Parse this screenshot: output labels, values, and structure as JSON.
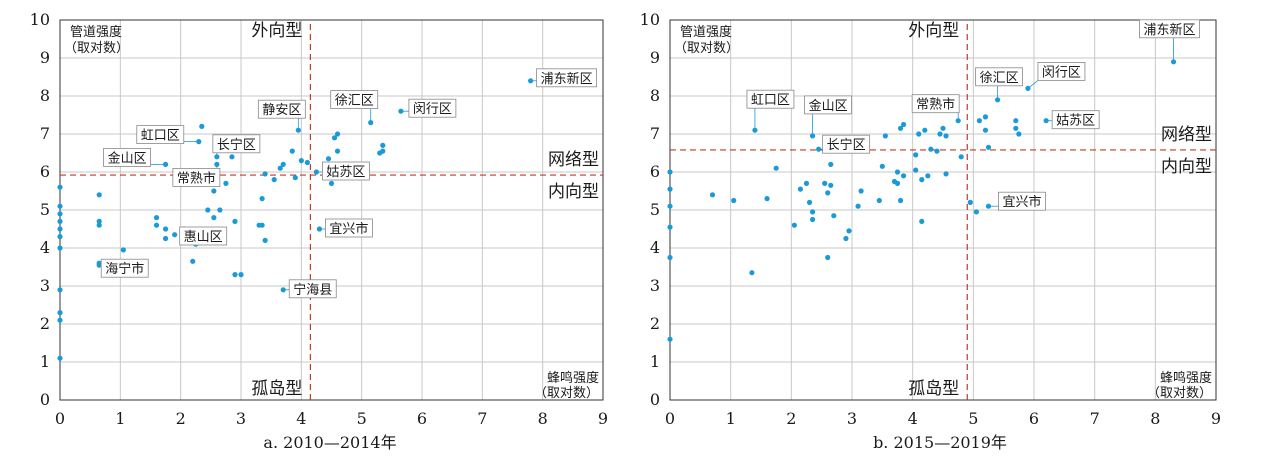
{
  "chart_data": [
    {
      "type": "scatter",
      "caption": "a. 2010—2014年",
      "xlabel": [
        "蜂鸣强度",
        "（取对数）"
      ],
      "ylabel": [
        "管道强度",
        "（取对数）"
      ],
      "xlim": [
        0,
        9
      ],
      "ylim": [
        0,
        10
      ],
      "xticks": [
        0,
        1,
        2,
        3,
        4,
        5,
        6,
        7,
        8,
        9
      ],
      "yticks": [
        0,
        1,
        2,
        3,
        4,
        5,
        6,
        7,
        8,
        9,
        10
      ],
      "grid": true,
      "threshold_x": 4.15,
      "threshold_y": 5.92,
      "quadrants": {
        "top": "外向型",
        "right_upper": "网络型",
        "right_lower": "内向型",
        "bottom": "孤岛型"
      },
      "points": [
        [
          0,
          1.1
        ],
        [
          0,
          2.1
        ],
        [
          0,
          2.3
        ],
        [
          0,
          2.9
        ],
        [
          0,
          4.0
        ],
        [
          0,
          4.3
        ],
        [
          0,
          4.5
        ],
        [
          0,
          4.7
        ],
        [
          0,
          4.9
        ],
        [
          0,
          5.1
        ],
        [
          0,
          5.6
        ],
        [
          0.65,
          3.6
        ],
        [
          0.65,
          3.55
        ],
        [
          0.65,
          4.6
        ],
        [
          0.65,
          4.7
        ],
        [
          0.65,
          5.4
        ],
        [
          1.05,
          3.95
        ],
        [
          1.6,
          4.6
        ],
        [
          1.6,
          4.8
        ],
        [
          1.75,
          4.5
        ],
        [
          1.75,
          4.25
        ],
        [
          1.75,
          6.2
        ],
        [
          1.9,
          4.35
        ],
        [
          2.05,
          4.2
        ],
        [
          2.05,
          4.35
        ],
        [
          2.05,
          4.5
        ],
        [
          2.2,
          3.65
        ],
        [
          2.25,
          4.1
        ],
        [
          2.35,
          4.3
        ],
        [
          2.3,
          6.8
        ],
        [
          2.35,
          7.2
        ],
        [
          2.45,
          5.0
        ],
        [
          2.55,
          4.8
        ],
        [
          2.55,
          5.5
        ],
        [
          2.65,
          5.0
        ],
        [
          2.6,
          6.2
        ],
        [
          2.6,
          6.4
        ],
        [
          2.75,
          5.7
        ],
        [
          2.85,
          6.4
        ],
        [
          2.9,
          4.7
        ],
        [
          2.9,
          3.3
        ],
        [
          3.0,
          3.3
        ],
        [
          3.3,
          4.6
        ],
        [
          3.35,
          4.6
        ],
        [
          3.35,
          5.3
        ],
        [
          3.4,
          4.2
        ],
        [
          3.4,
          5.95
        ],
        [
          3.55,
          5.8
        ],
        [
          3.65,
          6.1
        ],
        [
          3.7,
          6.2
        ],
        [
          3.7,
          2.9
        ],
        [
          3.85,
          6.55
        ],
        [
          3.9,
          5.85
        ],
        [
          3.95,
          7.1
        ],
        [
          4.0,
          6.3
        ],
        [
          4.1,
          6.25
        ],
        [
          4.25,
          6.0
        ],
        [
          4.3,
          4.5
        ],
        [
          4.45,
          6.35
        ],
        [
          4.5,
          5.7
        ],
        [
          4.55,
          6.9
        ],
        [
          4.6,
          7.0
        ],
        [
          4.6,
          6.55
        ],
        [
          5.15,
          7.3
        ],
        [
          5.3,
          6.5
        ],
        [
          5.35,
          6.55
        ],
        [
          5.35,
          6.7
        ],
        [
          5.65,
          7.6
        ],
        [
          7.8,
          8.4
        ]
      ],
      "labels": [
        {
          "text": "浦东新区",
          "x": 7.8,
          "y": 8.4
        },
        {
          "text": "徐汇区",
          "x": 5.15,
          "y": 7.3
        },
        {
          "text": "闵行区",
          "x": 5.65,
          "y": 7.6
        },
        {
          "text": "静安区",
          "x": 3.95,
          "y": 7.1
        },
        {
          "text": "虹口区",
          "x": 2.3,
          "y": 6.8
        },
        {
          "text": "长宁区",
          "x": 2.6,
          "y": 6.4
        },
        {
          "text": "金山区",
          "x": 1.75,
          "y": 6.2
        },
        {
          "text": "常熟市",
          "x": 2.6,
          "y": 6.2
        },
        {
          "text": "姑苏区",
          "x": 4.25,
          "y": 6.0
        },
        {
          "text": "惠山区",
          "x": 2.05,
          "y": 4.5
        },
        {
          "text": "宜兴市",
          "x": 4.3,
          "y": 4.5
        },
        {
          "text": "海宁市",
          "x": 0.65,
          "y": 3.6
        },
        {
          "text": "宁海县",
          "x": 3.7,
          "y": 2.9
        }
      ]
    },
    {
      "type": "scatter",
      "caption": "b. 2015—2019年",
      "xlabel": [
        "蜂鸣强度",
        "（取对数）"
      ],
      "ylabel": [
        "管道强度",
        "（取对数）"
      ],
      "xlim": [
        0,
        9
      ],
      "ylim": [
        0,
        10
      ],
      "xticks": [
        0,
        1,
        2,
        3,
        4,
        5,
        6,
        7,
        8,
        9
      ],
      "yticks": [
        0,
        1,
        2,
        3,
        4,
        5,
        6,
        7,
        8,
        9,
        10
      ],
      "grid": true,
      "threshold_x": 4.9,
      "threshold_y": 6.58,
      "quadrants": {
        "top": "外向型",
        "right_upper": "网络型",
        "right_lower": "内向型",
        "bottom": "孤岛型"
      },
      "points": [
        [
          0,
          1.6
        ],
        [
          0,
          3.75
        ],
        [
          0,
          4.55
        ],
        [
          0,
          5.1
        ],
        [
          0,
          5.55
        ],
        [
          0,
          6.0
        ],
        [
          0.7,
          5.4
        ],
        [
          1.05,
          5.25
        ],
        [
          1.35,
          3.35
        ],
        [
          1.4,
          7.1
        ],
        [
          1.6,
          5.3
        ],
        [
          1.75,
          6.1
        ],
        [
          2.05,
          4.6
        ],
        [
          2.15,
          5.55
        ],
        [
          2.25,
          5.7
        ],
        [
          2.3,
          5.2
        ],
        [
          2.35,
          4.95
        ],
        [
          2.35,
          4.75
        ],
        [
          2.35,
          6.95
        ],
        [
          2.45,
          6.6
        ],
        [
          2.55,
          5.7
        ],
        [
          2.6,
          5.45
        ],
        [
          2.6,
          3.75
        ],
        [
          2.65,
          5.65
        ],
        [
          2.65,
          6.2
        ],
        [
          2.7,
          4.85
        ],
        [
          2.9,
          4.25
        ],
        [
          2.95,
          4.45
        ],
        [
          3.1,
          5.1
        ],
        [
          3.15,
          5.5
        ],
        [
          3.15,
          6.6
        ],
        [
          3.45,
          5.25
        ],
        [
          3.5,
          6.15
        ],
        [
          3.55,
          6.95
        ],
        [
          3.7,
          5.75
        ],
        [
          3.75,
          5.7
        ],
        [
          3.75,
          6.0
        ],
        [
          3.8,
          5.25
        ],
        [
          3.8,
          7.15
        ],
        [
          3.85,
          7.25
        ],
        [
          3.85,
          5.9
        ],
        [
          4.05,
          6.45
        ],
        [
          4.05,
          6.05
        ],
        [
          4.1,
          7.0
        ],
        [
          4.15,
          5.8
        ],
        [
          4.15,
          4.7
        ],
        [
          4.2,
          7.1
        ],
        [
          4.25,
          5.9
        ],
        [
          4.3,
          6.6
        ],
        [
          4.4,
          6.55
        ],
        [
          4.45,
          7.0
        ],
        [
          4.5,
          7.15
        ],
        [
          4.55,
          6.95
        ],
        [
          4.55,
          5.95
        ],
        [
          4.75,
          7.35
        ],
        [
          4.8,
          6.4
        ],
        [
          4.95,
          5.2
        ],
        [
          5.05,
          4.95
        ],
        [
          5.1,
          7.35
        ],
        [
          5.2,
          7.45
        ],
        [
          5.2,
          7.1
        ],
        [
          5.25,
          6.65
        ],
        [
          5.25,
          5.1
        ],
        [
          5.4,
          7.9
        ],
        [
          5.7,
          7.35
        ],
        [
          5.7,
          7.15
        ],
        [
          5.75,
          7.0
        ],
        [
          5.9,
          8.2
        ],
        [
          6.2,
          7.35
        ],
        [
          8.3,
          8.9
        ]
      ],
      "labels": [
        {
          "text": "浦东新区",
          "x": 8.3,
          "y": 8.9
        },
        {
          "text": "徐汇区",
          "x": 5.4,
          "y": 7.9
        },
        {
          "text": "闵行区",
          "x": 5.9,
          "y": 8.2
        },
        {
          "text": "常熟市",
          "x": 4.75,
          "y": 7.35
        },
        {
          "text": "虹口区",
          "x": 1.4,
          "y": 7.1
        },
        {
          "text": "金山区",
          "x": 2.35,
          "y": 6.95
        },
        {
          "text": "长宁区",
          "x": 2.45,
          "y": 6.6
        },
        {
          "text": "姑苏区",
          "x": 6.2,
          "y": 7.35
        },
        {
          "text": "宜兴市",
          "x": 5.25,
          "y": 5.1
        }
      ]
    }
  ]
}
